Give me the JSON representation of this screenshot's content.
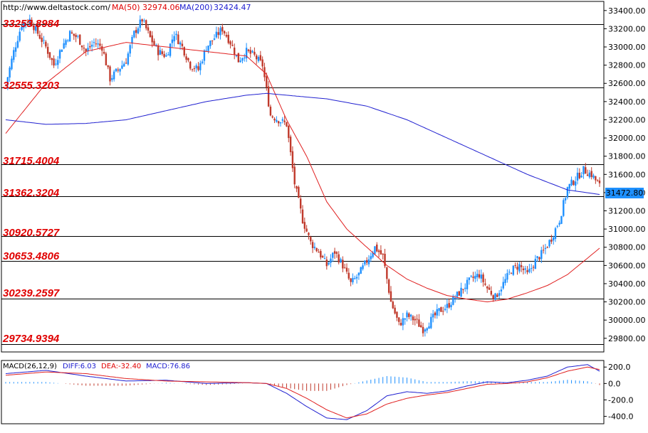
{
  "header": {
    "source_url": "http://www.deltastock.com/",
    "ma50_label": "MA(50)",
    "ma50_value": "32974.06",
    "ma200_label": "MA(200)",
    "ma200_value": "32424.47"
  },
  "levels": [
    "33253.8984",
    "32555.3203",
    "31715.4004",
    "31362.3204",
    "30920.5727",
    "30653.4806",
    "30239.2597",
    "29734.9394"
  ],
  "last_price": "31472.80",
  "macd_header": {
    "label": "MACD(26,12,9)",
    "diff": "DIFF:6.03",
    "dea": "DEA:-32.40",
    "macd": "MACD:76.86"
  },
  "colors": {
    "up": "#1e90ff",
    "down": "#c0392b",
    "ma50": "#e02020",
    "ma200": "#2020d0",
    "level_text": "#e00000",
    "price_tag": "#1e90ff"
  },
  "chart_data": [
    {
      "type": "candlestick",
      "title": "",
      "ylim": [
        29650,
        33500
      ],
      "yticks": [
        "33400.00",
        "33200.00",
        "33000.00",
        "32800.00",
        "32600.00",
        "32400.00",
        "32200.00",
        "32000.00",
        "31800.00",
        "31600.00",
        "31400.00",
        "31200.00",
        "31000.00",
        "30800.00",
        "30600.00",
        "30400.00",
        "30200.00",
        "30000.00",
        "29800.00"
      ],
      "horizontal_levels": [
        33253.8984,
        32555.3203,
        31715.4004,
        31362.3204,
        30920.5727,
        30653.4806,
        30239.2597,
        29734.9394
      ],
      "close_anchors": [
        [
          0,
          32580
        ],
        [
          4,
          32950
        ],
        [
          8,
          33250
        ],
        [
          12,
          33300
        ],
        [
          16,
          33150
        ],
        [
          20,
          33000
        ],
        [
          24,
          32800
        ],
        [
          28,
          33000
        ],
        [
          32,
          33150
        ],
        [
          36,
          33100
        ],
        [
          40,
          32950
        ],
        [
          44,
          33050
        ],
        [
          48,
          33000
        ],
        [
          52,
          32650
        ],
        [
          56,
          32750
        ],
        [
          60,
          32850
        ],
        [
          64,
          33150
        ],
        [
          68,
          33300
        ],
        [
          72,
          33100
        ],
        [
          76,
          32950
        ],
        [
          80,
          32900
        ],
        [
          84,
          33150
        ],
        [
          88,
          33000
        ],
        [
          92,
          32800
        ],
        [
          96,
          32750
        ],
        [
          100,
          33000
        ],
        [
          104,
          33100
        ],
        [
          108,
          33200
        ],
        [
          112,
          33050
        ],
        [
          116,
          32850
        ],
        [
          120,
          32950
        ],
        [
          124,
          32900
        ],
        [
          128,
          32800
        ],
        [
          132,
          32250
        ],
        [
          136,
          32200
        ],
        [
          140,
          32150
        ],
        [
          144,
          31500
        ],
        [
          148,
          31100
        ],
        [
          152,
          30850
        ],
        [
          156,
          30750
        ],
        [
          160,
          30600
        ],
        [
          164,
          30750
        ],
        [
          168,
          30600
        ],
        [
          172,
          30400
        ],
        [
          176,
          30500
        ],
        [
          180,
          30650
        ],
        [
          184,
          30800
        ],
        [
          188,
          30700
        ],
        [
          192,
          30200
        ],
        [
          196,
          29950
        ],
        [
          200,
          30050
        ],
        [
          204,
          30000
        ],
        [
          208,
          29900
        ],
        [
          212,
          30000
        ],
        [
          216,
          30100
        ],
        [
          220,
          30150
        ],
        [
          224,
          30250
        ],
        [
          228,
          30350
        ],
        [
          232,
          30450
        ],
        [
          236,
          30500
        ],
        [
          240,
          30350
        ],
        [
          244,
          30250
        ],
        [
          248,
          30400
        ],
        [
          252,
          30550
        ],
        [
          256,
          30600
        ],
        [
          260,
          30500
        ],
        [
          264,
          30650
        ],
        [
          268,
          30750
        ],
        [
          272,
          30900
        ],
        [
          276,
          31100
        ],
        [
          280,
          31450
        ],
        [
          284,
          31550
        ],
        [
          288,
          31650
        ],
        [
          292,
          31600
        ],
        [
          296,
          31473
        ]
      ],
      "ma50": [
        [
          0,
          32050
        ],
        [
          20,
          32600
        ],
        [
          40,
          32950
        ],
        [
          60,
          33050
        ],
        [
          80,
          33000
        ],
        [
          100,
          32950
        ],
        [
          120,
          32900
        ],
        [
          130,
          32700
        ],
        [
          140,
          32200
        ],
        [
          150,
          31800
        ],
        [
          160,
          31300
        ],
        [
          170,
          31000
        ],
        [
          180,
          30800
        ],
        [
          190,
          30600
        ],
        [
          200,
          30450
        ],
        [
          210,
          30350
        ],
        [
          220,
          30270
        ],
        [
          230,
          30230
        ],
        [
          240,
          30200
        ],
        [
          250,
          30230
        ],
        [
          260,
          30300
        ],
        [
          270,
          30380
        ],
        [
          280,
          30500
        ],
        [
          290,
          30680
        ],
        [
          296,
          30790
        ]
      ],
      "ma200": [
        [
          0,
          32200
        ],
        [
          20,
          32150
        ],
        [
          40,
          32160
        ],
        [
          60,
          32200
        ],
        [
          80,
          32300
        ],
        [
          100,
          32400
        ],
        [
          120,
          32470
        ],
        [
          130,
          32490
        ],
        [
          140,
          32470
        ],
        [
          160,
          32430
        ],
        [
          180,
          32350
        ],
        [
          200,
          32200
        ],
        [
          220,
          32000
        ],
        [
          240,
          31800
        ],
        [
          260,
          31600
        ],
        [
          280,
          31430
        ],
        [
          296,
          31380
        ]
      ]
    },
    {
      "type": "macd",
      "title": "MACD(26,12,9)",
      "ylim": [
        -490,
        280
      ],
      "yticks": [
        "200.0",
        "0.0",
        "-200.0",
        "-400.0"
      ],
      "diff": [
        [
          0,
          120
        ],
        [
          20,
          160
        ],
        [
          40,
          90
        ],
        [
          60,
          30
        ],
        [
          80,
          40
        ],
        [
          100,
          0
        ],
        [
          120,
          10
        ],
        [
          130,
          0
        ],
        [
          140,
          -120
        ],
        [
          150,
          -280
        ],
        [
          160,
          -420
        ],
        [
          170,
          -440
        ],
        [
          180,
          -330
        ],
        [
          190,
          -150
        ],
        [
          200,
          -100
        ],
        [
          210,
          -120
        ],
        [
          220,
          -90
        ],
        [
          230,
          -30
        ],
        [
          240,
          20
        ],
        [
          250,
          10
        ],
        [
          260,
          40
        ],
        [
          270,
          90
        ],
        [
          280,
          200
        ],
        [
          290,
          230
        ],
        [
          296,
          150
        ]
      ],
      "dea": [
        [
          0,
          100
        ],
        [
          20,
          140
        ],
        [
          40,
          120
        ],
        [
          60,
          60
        ],
        [
          80,
          30
        ],
        [
          100,
          20
        ],
        [
          120,
          10
        ],
        [
          130,
          0
        ],
        [
          140,
          -60
        ],
        [
          150,
          -180
        ],
        [
          160,
          -320
        ],
        [
          170,
          -420
        ],
        [
          180,
          -370
        ],
        [
          190,
          -250
        ],
        [
          200,
          -180
        ],
        [
          210,
          -140
        ],
        [
          220,
          -110
        ],
        [
          230,
          -60
        ],
        [
          240,
          -10
        ],
        [
          250,
          0
        ],
        [
          260,
          20
        ],
        [
          270,
          70
        ],
        [
          280,
          150
        ],
        [
          290,
          200
        ],
        [
          296,
          170
        ]
      ]
    }
  ]
}
